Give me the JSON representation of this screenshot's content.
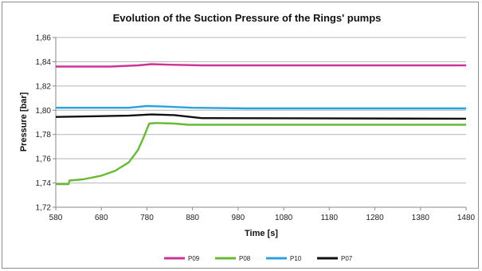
{
  "chart_data": {
    "type": "line",
    "title": "Evolution of the Suction Pressure of the Rings' pumps",
    "xlabel": "Time [s]",
    "ylabel": "Pressure [bar]",
    "xlim": [
      580,
      1480
    ],
    "ylim": [
      1.72,
      1.86
    ],
    "xticks": [
      "580",
      "680",
      "780",
      "880",
      "980",
      "1080",
      "1180",
      "1280",
      "1380",
      "1480"
    ],
    "xtick_values": [
      580,
      680,
      780,
      880,
      980,
      1080,
      1180,
      1280,
      1380,
      1480
    ],
    "yticks": [
      "1,72",
      "1,74",
      "1,76",
      "1,78",
      "1,80",
      "1,82",
      "1,84",
      "1,86"
    ],
    "ytick_values": [
      1.72,
      1.74,
      1.76,
      1.78,
      1.8,
      1.82,
      1.84,
      1.86
    ],
    "grid": "horizontal",
    "legend_position": "bottom",
    "series": [
      {
        "name": "P09",
        "color": "#cc3399",
        "points": [
          [
            580,
            1.836
          ],
          [
            700,
            1.836
          ],
          [
            760,
            1.837
          ],
          [
            790,
            1.838
          ],
          [
            830,
            1.8375
          ],
          [
            900,
            1.837
          ],
          [
            1480,
            1.837
          ]
        ]
      },
      {
        "name": "P08",
        "color": "#66bb33",
        "points": [
          [
            580,
            1.739
          ],
          [
            608,
            1.739
          ],
          [
            610,
            1.742
          ],
          [
            640,
            1.743
          ],
          [
            680,
            1.746
          ],
          [
            710,
            1.75
          ],
          [
            740,
            1.757
          ],
          [
            760,
            1.767
          ],
          [
            772,
            1.777
          ],
          [
            785,
            1.789
          ],
          [
            800,
            1.7895
          ],
          [
            840,
            1.789
          ],
          [
            870,
            1.788
          ],
          [
            1480,
            1.788
          ]
        ]
      },
      {
        "name": "P10",
        "color": "#29a3e0",
        "points": [
          [
            580,
            1.802
          ],
          [
            740,
            1.802
          ],
          [
            780,
            1.8035
          ],
          [
            820,
            1.803
          ],
          [
            880,
            1.802
          ],
          [
            1000,
            1.8015
          ],
          [
            1480,
            1.8015
          ]
        ]
      },
      {
        "name": "P07",
        "color": "#111111",
        "points": [
          [
            580,
            1.7945
          ],
          [
            740,
            1.7955
          ],
          [
            790,
            1.7965
          ],
          [
            840,
            1.796
          ],
          [
            900,
            1.7935
          ],
          [
            1480,
            1.793
          ]
        ]
      }
    ]
  }
}
